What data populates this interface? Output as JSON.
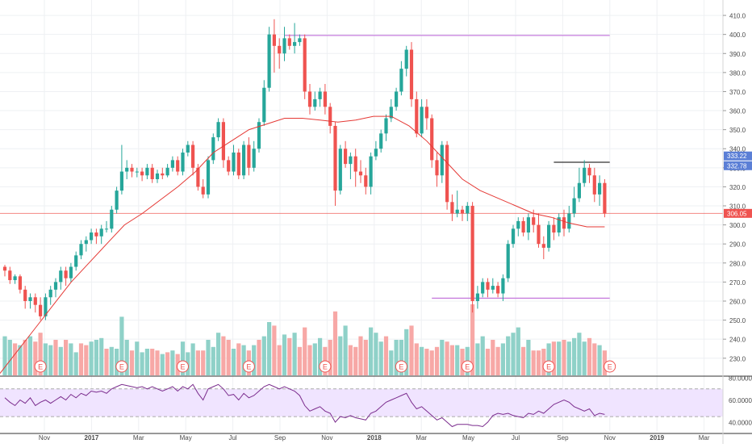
{
  "chart_data": {
    "type": "candlestick",
    "x_labels": [
      "Nov",
      "2017",
      "Mar",
      "May",
      "Jul",
      "Sep",
      "Nov",
      "2018",
      "Mar",
      "May",
      "Jul",
      "Sep",
      "Nov",
      "2019",
      "Mar"
    ],
    "price_axis": {
      "ylim": [
        221,
        413
      ],
      "ticks": [
        230,
        240,
        250,
        260,
        270,
        280,
        290,
        300,
        310,
        320,
        330,
        340,
        350,
        360,
        370,
        380,
        390,
        400,
        410
      ]
    },
    "price_labels": [
      {
        "value": 333.22,
        "text": "333.22",
        "color": "#5b7fd6"
      },
      {
        "value": 332.78,
        "text": "332.78",
        "color": "#5b7fd6"
      },
      {
        "value": 306.05,
        "text": "306.05",
        "color": "#ef5350"
      }
    ],
    "candles": [
      [
        278,
        276,
        279,
        273
      ],
      [
        276,
        271,
        278,
        269
      ],
      [
        271,
        273,
        274,
        269
      ],
      [
        273,
        266,
        274,
        264
      ],
      [
        266,
        260,
        268,
        256
      ],
      [
        260,
        262,
        264,
        256
      ],
      [
        262,
        258,
        264,
        254
      ],
      [
        258,
        252,
        262,
        250
      ],
      [
        252,
        262,
        264,
        250
      ],
      [
        262,
        266,
        268,
        258
      ],
      [
        266,
        270,
        272,
        262
      ],
      [
        270,
        276,
        278,
        266
      ],
      [
        276,
        272,
        278,
        268
      ],
      [
        272,
        278,
        280,
        270
      ],
      [
        278,
        284,
        286,
        276
      ],
      [
        284,
        290,
        292,
        282
      ],
      [
        290,
        292,
        294,
        286
      ],
      [
        292,
        296,
        298,
        290
      ],
      [
        296,
        294,
        298,
        290
      ],
      [
        294,
        298,
        300,
        290
      ],
      [
        298,
        298,
        302,
        296
      ],
      [
        298,
        308,
        310,
        296
      ],
      [
        308,
        318,
        320,
        306
      ],
      [
        318,
        328,
        342,
        316
      ],
      [
        328,
        330,
        334,
        324
      ],
      [
        330,
        328,
        332,
        325
      ],
      [
        328,
        328,
        330,
        325
      ],
      [
        328,
        326,
        330,
        323
      ],
      [
        326,
        330,
        332,
        324
      ],
      [
        330,
        324,
        332,
        322
      ],
      [
        324,
        327,
        329,
        322
      ],
      [
        327,
        326,
        330,
        324
      ],
      [
        326,
        330,
        332,
        325
      ],
      [
        330,
        334,
        336,
        328
      ],
      [
        334,
        328,
        336,
        326
      ],
      [
        328,
        338,
        340,
        326
      ],
      [
        338,
        342,
        344,
        336
      ],
      [
        342,
        330,
        344,
        326
      ],
      [
        330,
        320,
        332,
        318
      ],
      [
        320,
        316,
        324,
        314
      ],
      [
        316,
        334,
        336,
        314
      ],
      [
        334,
        346,
        348,
        332
      ],
      [
        346,
        354,
        356,
        344
      ],
      [
        354,
        334,
        356,
        330
      ],
      [
        334,
        328,
        336,
        326
      ],
      [
        328,
        338,
        342,
        326
      ],
      [
        338,
        326,
        340,
        324
      ],
      [
        326,
        342,
        344,
        324
      ],
      [
        342,
        330,
        346,
        326
      ],
      [
        330,
        340,
        344,
        328
      ],
      [
        340,
        354,
        356,
        338
      ],
      [
        354,
        372,
        376,
        352
      ],
      [
        372,
        400,
        404,
        370
      ],
      [
        400,
        394,
        408,
        380
      ],
      [
        394,
        390,
        398,
        382
      ],
      [
        390,
        398,
        404,
        386
      ],
      [
        398,
        394,
        400,
        392
      ],
      [
        394,
        396,
        406,
        390
      ],
      [
        396,
        398,
        400,
        394
      ],
      [
        398,
        370,
        400,
        366
      ],
      [
        370,
        362,
        374,
        358
      ],
      [
        362,
        366,
        370,
        360
      ],
      [
        366,
        370,
        372,
        362
      ],
      [
        370,
        362,
        374,
        358
      ],
      [
        362,
        352,
        364,
        348
      ],
      [
        352,
        318,
        354,
        310
      ],
      [
        318,
        340,
        342,
        316
      ],
      [
        340,
        332,
        344,
        330
      ],
      [
        332,
        336,
        338,
        324
      ],
      [
        336,
        328,
        340,
        320
      ],
      [
        328,
        326,
        334,
        322
      ],
      [
        326,
        320,
        330,
        316
      ],
      [
        320,
        336,
        338,
        316
      ],
      [
        336,
        340,
        344,
        334
      ],
      [
        340,
        348,
        350,
        338
      ],
      [
        348,
        356,
        358,
        344
      ],
      [
        356,
        362,
        366,
        354
      ],
      [
        362,
        370,
        372,
        360
      ],
      [
        370,
        382,
        386,
        368
      ],
      [
        382,
        392,
        394,
        378
      ],
      [
        392,
        366,
        396,
        362
      ],
      [
        366,
        348,
        370,
        346
      ],
      [
        348,
        362,
        366,
        346
      ],
      [
        362,
        356,
        366,
        350
      ],
      [
        356,
        334,
        358,
        330
      ],
      [
        334,
        326,
        338,
        320
      ],
      [
        326,
        342,
        344,
        322
      ],
      [
        342,
        312,
        344,
        308
      ],
      [
        312,
        306,
        316,
        302
      ],
      [
        306,
        308,
        318,
        304
      ],
      [
        308,
        306,
        310,
        302
      ],
      [
        306,
        310,
        312,
        302
      ],
      [
        310,
        260,
        312,
        254
      ],
      [
        260,
        264,
        268,
        256
      ],
      [
        264,
        270,
        272,
        262
      ],
      [
        270,
        266,
        272,
        262
      ],
      [
        266,
        268,
        272,
        264
      ],
      [
        268,
        264,
        270,
        262
      ],
      [
        264,
        272,
        274,
        260
      ],
      [
        272,
        290,
        292,
        270
      ],
      [
        290,
        298,
        300,
        288
      ],
      [
        298,
        302,
        304,
        294
      ],
      [
        302,
        296,
        304,
        294
      ],
      [
        296,
        304,
        306,
        292
      ],
      [
        304,
        300,
        308,
        296
      ],
      [
        300,
        290,
        306,
        288
      ],
      [
        290,
        288,
        294,
        282
      ],
      [
        288,
        300,
        302,
        286
      ],
      [
        300,
        296,
        304,
        292
      ],
      [
        296,
        304,
        306,
        294
      ],
      [
        304,
        298,
        308,
        294
      ],
      [
        298,
        306,
        310,
        296
      ],
      [
        306,
        314,
        320,
        304
      ],
      [
        314,
        322,
        330,
        312
      ],
      [
        322,
        330,
        334,
        320
      ],
      [
        330,
        326,
        332,
        322
      ],
      [
        326,
        316,
        330,
        312
      ],
      [
        316,
        322,
        326,
        310
      ],
      [
        322,
        306,
        324,
        304
      ]
    ],
    "candle_x0": 6,
    "candle_dx": 6.3,
    "ma": [
      [
        0,
        222
      ],
      [
        8,
        234
      ],
      [
        16,
        246
      ],
      [
        24,
        258
      ],
      [
        32,
        270
      ],
      [
        40,
        280
      ],
      [
        48,
        290
      ],
      [
        56,
        300
      ],
      [
        64,
        306
      ],
      [
        72,
        313
      ],
      [
        80,
        320
      ],
      [
        88,
        328
      ],
      [
        96,
        338
      ],
      [
        104,
        344
      ],
      [
        112,
        350
      ],
      [
        120,
        353
      ],
      [
        128,
        356
      ],
      [
        136,
        356
      ],
      [
        144,
        355
      ],
      [
        152,
        354
      ],
      [
        160,
        355
      ],
      [
        168,
        357
      ],
      [
        176,
        357
      ],
      [
        184,
        352
      ],
      [
        192,
        344
      ],
      [
        200,
        334
      ],
      [
        208,
        324
      ],
      [
        216,
        318
      ],
      [
        224,
        314
      ],
      [
        232,
        310
      ],
      [
        240,
        306
      ],
      [
        248,
        304
      ],
      [
        256,
        301
      ],
      [
        264,
        299
      ],
      [
        272,
        299
      ]
    ],
    "volume": [
      {
        "v": 22,
        "up": true
      },
      {
        "v": 20,
        "up": true
      },
      {
        "v": 18,
        "up": false
      },
      {
        "v": 17,
        "up": true
      },
      {
        "v": 20,
        "up": false
      },
      {
        "v": 22,
        "up": true
      },
      {
        "v": 19,
        "up": false
      },
      {
        "v": 24,
        "up": false
      },
      {
        "v": 18,
        "up": true
      },
      {
        "v": 17,
        "up": true
      },
      {
        "v": 20,
        "up": false
      },
      {
        "v": 16,
        "up": true
      },
      {
        "v": 20,
        "up": false
      },
      {
        "v": 18,
        "up": true
      },
      {
        "v": 13,
        "up": true
      },
      {
        "v": 18,
        "up": false
      },
      {
        "v": 17,
        "up": false
      },
      {
        "v": 19,
        "up": true
      },
      {
        "v": 20,
        "up": true
      },
      {
        "v": 21,
        "up": true
      },
      {
        "v": 15,
        "up": false
      },
      {
        "v": 16,
        "up": true
      },
      {
        "v": 15,
        "up": true
      },
      {
        "v": 33,
        "up": true
      },
      {
        "v": 20,
        "up": true
      },
      {
        "v": 14,
        "up": false
      },
      {
        "v": 19,
        "up": true
      },
      {
        "v": 13,
        "up": true
      },
      {
        "v": 15,
        "up": true
      },
      {
        "v": 15,
        "up": false
      },
      {
        "v": 14,
        "up": false
      },
      {
        "v": 12,
        "up": true
      },
      {
        "v": 13,
        "up": false
      },
      {
        "v": 14,
        "up": true
      },
      {
        "v": 12,
        "up": false
      },
      {
        "v": 19,
        "up": true
      },
      {
        "v": 13,
        "up": true
      },
      {
        "v": 18,
        "up": true
      },
      {
        "v": 14,
        "up": false
      },
      {
        "v": 14,
        "up": false
      },
      {
        "v": 20,
        "up": true
      },
      {
        "v": 16,
        "up": true
      },
      {
        "v": 24,
        "up": true
      },
      {
        "v": 22,
        "up": false
      },
      {
        "v": 20,
        "up": false
      },
      {
        "v": 15,
        "up": true
      },
      {
        "v": 18,
        "up": false
      },
      {
        "v": 17,
        "up": true
      },
      {
        "v": 14,
        "up": false
      },
      {
        "v": 17,
        "up": true
      },
      {
        "v": 20,
        "up": false
      },
      {
        "v": 22,
        "up": true
      },
      {
        "v": 30,
        "up": true
      },
      {
        "v": 28,
        "up": false
      },
      {
        "v": 17,
        "up": false
      },
      {
        "v": 23,
        "up": true
      },
      {
        "v": 21,
        "up": false
      },
      {
        "v": 24,
        "up": true
      },
      {
        "v": 16,
        "up": false
      },
      {
        "v": 27,
        "up": false
      },
      {
        "v": 17,
        "up": false
      },
      {
        "v": 18,
        "up": true
      },
      {
        "v": 21,
        "up": true
      },
      {
        "v": 16,
        "up": false
      },
      {
        "v": 20,
        "up": false
      },
      {
        "v": 36,
        "up": false
      },
      {
        "v": 22,
        "up": true
      },
      {
        "v": 28,
        "up": true
      },
      {
        "v": 17,
        "up": false
      },
      {
        "v": 16,
        "up": false
      },
      {
        "v": 22,
        "up": false
      },
      {
        "v": 20,
        "up": false
      },
      {
        "v": 27,
        "up": true
      },
      {
        "v": 24,
        "up": true
      },
      {
        "v": 19,
        "up": true
      },
      {
        "v": 22,
        "up": false
      },
      {
        "v": 14,
        "up": true
      },
      {
        "v": 20,
        "up": true
      },
      {
        "v": 20,
        "up": true
      },
      {
        "v": 26,
        "up": true
      },
      {
        "v": 28,
        "up": false
      },
      {
        "v": 18,
        "up": false
      },
      {
        "v": 16,
        "up": true
      },
      {
        "v": 15,
        "up": false
      },
      {
        "v": 14,
        "up": false
      },
      {
        "v": 16,
        "up": false
      },
      {
        "v": 20,
        "up": true
      },
      {
        "v": 19,
        "up": false
      },
      {
        "v": 17,
        "up": false
      },
      {
        "v": 17,
        "up": true
      },
      {
        "v": 15,
        "up": false
      },
      {
        "v": 16,
        "up": true
      },
      {
        "v": 40,
        "up": false
      },
      {
        "v": 18,
        "up": true
      },
      {
        "v": 22,
        "up": true
      },
      {
        "v": 15,
        "up": false
      },
      {
        "v": 20,
        "up": false
      },
      {
        "v": 16,
        "up": false
      },
      {
        "v": 18,
        "up": true
      },
      {
        "v": 22,
        "up": true
      },
      {
        "v": 24,
        "up": true
      },
      {
        "v": 27,
        "up": true
      },
      {
        "v": 16,
        "up": false
      },
      {
        "v": 20,
        "up": true
      },
      {
        "v": 14,
        "up": false
      },
      {
        "v": 14,
        "up": false
      },
      {
        "v": 15,
        "up": false
      },
      {
        "v": 18,
        "up": true
      },
      {
        "v": 19,
        "up": false
      },
      {
        "v": 19,
        "up": true
      },
      {
        "v": 20,
        "up": false
      },
      {
        "v": 19,
        "up": true
      },
      {
        "v": 21,
        "up": true
      },
      {
        "v": 24,
        "up": true
      },
      {
        "v": 19,
        "up": true
      },
      {
        "v": 21,
        "up": false
      },
      {
        "v": 18,
        "up": false
      },
      {
        "v": 17,
        "up": true
      },
      {
        "v": 14,
        "up": false
      }
    ],
    "volume_max": 50,
    "earnings_marker": "E",
    "earnings_candles": [
      7,
      23,
      35,
      48,
      63,
      78,
      91,
      107,
      119
    ],
    "resistance_lines": [
      {
        "from": 55,
        "to": 119,
        "value": 399.5,
        "color": "#c77dde"
      },
      {
        "from": 84,
        "to": 119,
        "value": 261.5,
        "color": "#c77dde"
      },
      {
        "from": 108,
        "to": 119,
        "value": 332.9,
        "color": "#333333"
      }
    ],
    "current_price_line": {
      "value": 306.05,
      "color": "#ef5350"
    },
    "rsi": {
      "ylim": [
        32,
        80
      ],
      "ticks": [
        80,
        60,
        40
      ],
      "tick_labels": [
        "80.0000",
        "60.0000",
        "40.0000"
      ],
      "band": [
        45,
        70
      ],
      "values": [
        62,
        58,
        55,
        60,
        57,
        62,
        55,
        58,
        60,
        57,
        60,
        63,
        60,
        65,
        62,
        66,
        64,
        68,
        67,
        68,
        66,
        70,
        72,
        74,
        73,
        72,
        71,
        72,
        70,
        72,
        70,
        68,
        70,
        72,
        68,
        72,
        70,
        74,
        66,
        60,
        70,
        72,
        74,
        70,
        64,
        65,
        60,
        66,
        62,
        64,
        68,
        72,
        74,
        72,
        70,
        72,
        70,
        68,
        64,
        55,
        50,
        52,
        54,
        50,
        48,
        40,
        45,
        44,
        46,
        44,
        43,
        42,
        48,
        50,
        54,
        58,
        60,
        62,
        64,
        66,
        58,
        52,
        54,
        50,
        46,
        42,
        44,
        40,
        36,
        38,
        38,
        38,
        37,
        37,
        36,
        40,
        46,
        48,
        47,
        48,
        46,
        45,
        44,
        48,
        47,
        50,
        48,
        52,
        56,
        58,
        60,
        58,
        54,
        52,
        50,
        52,
        46,
        48,
        47
      ]
    },
    "colors": {
      "up": "#26a69a",
      "down": "#ef5350",
      "up_volume": "#8fd1c8",
      "down_volume": "#f7a8a6",
      "ma": "#e53935",
      "rsi_line": "#7b2d8e",
      "rsi_band": "#f0e4ff",
      "grid": "#eef0f3",
      "axis_text": "#4a4a4a"
    }
  }
}
